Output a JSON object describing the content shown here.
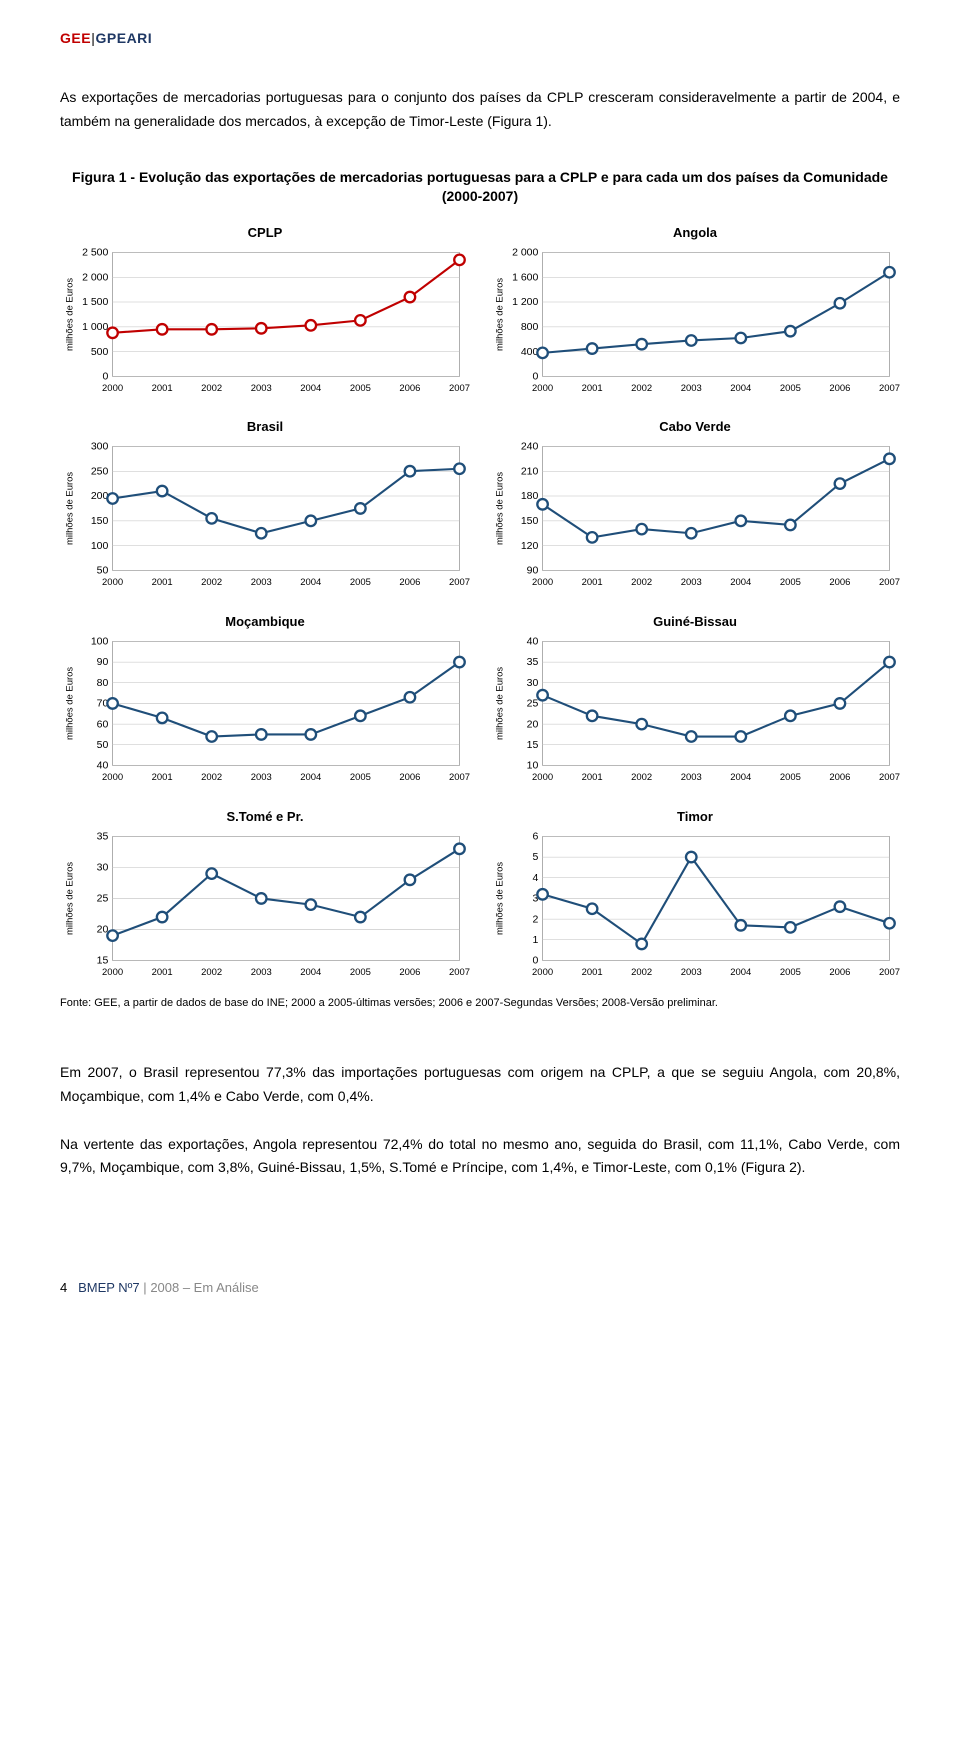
{
  "header": {
    "part1": "GEE",
    "sep": "|",
    "part2": "GPEARI"
  },
  "paragraphs": {
    "intro": "As exportações de mercadorias portuguesas para o conjunto dos países da CPLP cresceram consideravelmente a partir de 2004, e também na generalidade dos mercados, à excepção de Timor-Leste (Figura 1).",
    "p2": "Em 2007, o Brasil representou 77,3% das importações portuguesas com origem na CPLP, a que se seguiu Angola, com 20,8%, Moçambique, com 1,4% e Cabo Verde, com 0,4%.",
    "p3": "Na vertente das exportações, Angola representou 72,4% do total no mesmo ano, seguida do Brasil, com 11,1%, Cabo Verde, com 9,7%, Moçambique, com 3,8%, Guiné-Bissau, 1,5%, S.Tomé e Príncipe, com 1,4%, e Timor-Leste, com 0,1% (Figura 2)."
  },
  "figure": {
    "title": "Figura 1 - Evolução das exportações de mercadorias portuguesas para a CPLP e para cada um dos países da Comunidade (2000-2007)",
    "source": "Fonte: GEE, a partir de dados de base do INE; 2000 a 2005-últimas versões; 2006 e 2007-Segundas Versões; 2008-Versão preliminar.",
    "ylabel": "milhões de Euros",
    "years": [
      "2000",
      "2001",
      "2002",
      "2003",
      "2004",
      "2005",
      "2006",
      "2007"
    ],
    "charts": {
      "cplp": {
        "title": "CPLP",
        "color": "#c00000",
        "values": [
          880,
          950,
          950,
          970,
          1030,
          1130,
          1600,
          2350
        ],
        "ylim": [
          0,
          2500
        ],
        "yticks": [
          0,
          500,
          1000,
          1500,
          2000,
          2500
        ]
      },
      "angola": {
        "title": "Angola",
        "color": "#1f4e79",
        "values": [
          380,
          450,
          520,
          580,
          620,
          730,
          1180,
          1680
        ],
        "ylim": [
          0,
          2000
        ],
        "yticks": [
          0,
          400,
          800,
          1200,
          1600,
          2000
        ]
      },
      "brasil": {
        "title": "Brasil",
        "color": "#1f4e79",
        "values": [
          195,
          210,
          155,
          125,
          150,
          175,
          250,
          255
        ],
        "ylim": [
          50,
          300
        ],
        "yticks": [
          50,
          100,
          150,
          200,
          250,
          300
        ]
      },
      "caboverde": {
        "title": "Cabo Verde",
        "color": "#1f4e79",
        "values": [
          170,
          130,
          140,
          135,
          150,
          145,
          195,
          225
        ],
        "ylim": [
          90,
          240
        ],
        "yticks": [
          90,
          120,
          150,
          180,
          210,
          240
        ]
      },
      "mocambique": {
        "title": "Moçambique",
        "color": "#1f4e79",
        "values": [
          70,
          63,
          54,
          55,
          55,
          64,
          73,
          90
        ],
        "ylim": [
          40,
          100
        ],
        "yticks": [
          40,
          50,
          60,
          70,
          80,
          90,
          100
        ]
      },
      "guinebissau": {
        "title": "Guiné-Bissau",
        "color": "#1f4e79",
        "values": [
          27,
          22,
          20,
          17,
          17,
          22,
          25,
          35
        ],
        "ylim": [
          10,
          40
        ],
        "yticks": [
          10,
          15,
          20,
          25,
          30,
          35,
          40
        ]
      },
      "stome": {
        "title": "S.Tomé e Pr.",
        "color": "#1f4e79",
        "values": [
          19,
          22,
          29,
          25,
          24,
          22,
          28,
          33
        ],
        "ylim": [
          15,
          35
        ],
        "yticks": [
          15,
          20,
          25,
          30,
          35
        ]
      },
      "timor": {
        "title": "Timor",
        "color": "#1f4e79",
        "values": [
          3.2,
          2.5,
          0.8,
          5.0,
          1.7,
          1.6,
          2.6,
          1.8
        ],
        "ylim": [
          0,
          6
        ],
        "yticks": [
          0,
          1,
          2,
          3,
          4,
          5,
          6
        ]
      }
    }
  },
  "footer": {
    "pagenum": "4",
    "bmep": "BMEP Nº7",
    "sep": "|",
    "year": "2008 – Em Análise"
  },
  "style": {
    "marker_radius": 5,
    "line_width": 2,
    "grid_color": "#bfbfbf",
    "axis_color": "#808080",
    "plot_border": "#808080"
  }
}
